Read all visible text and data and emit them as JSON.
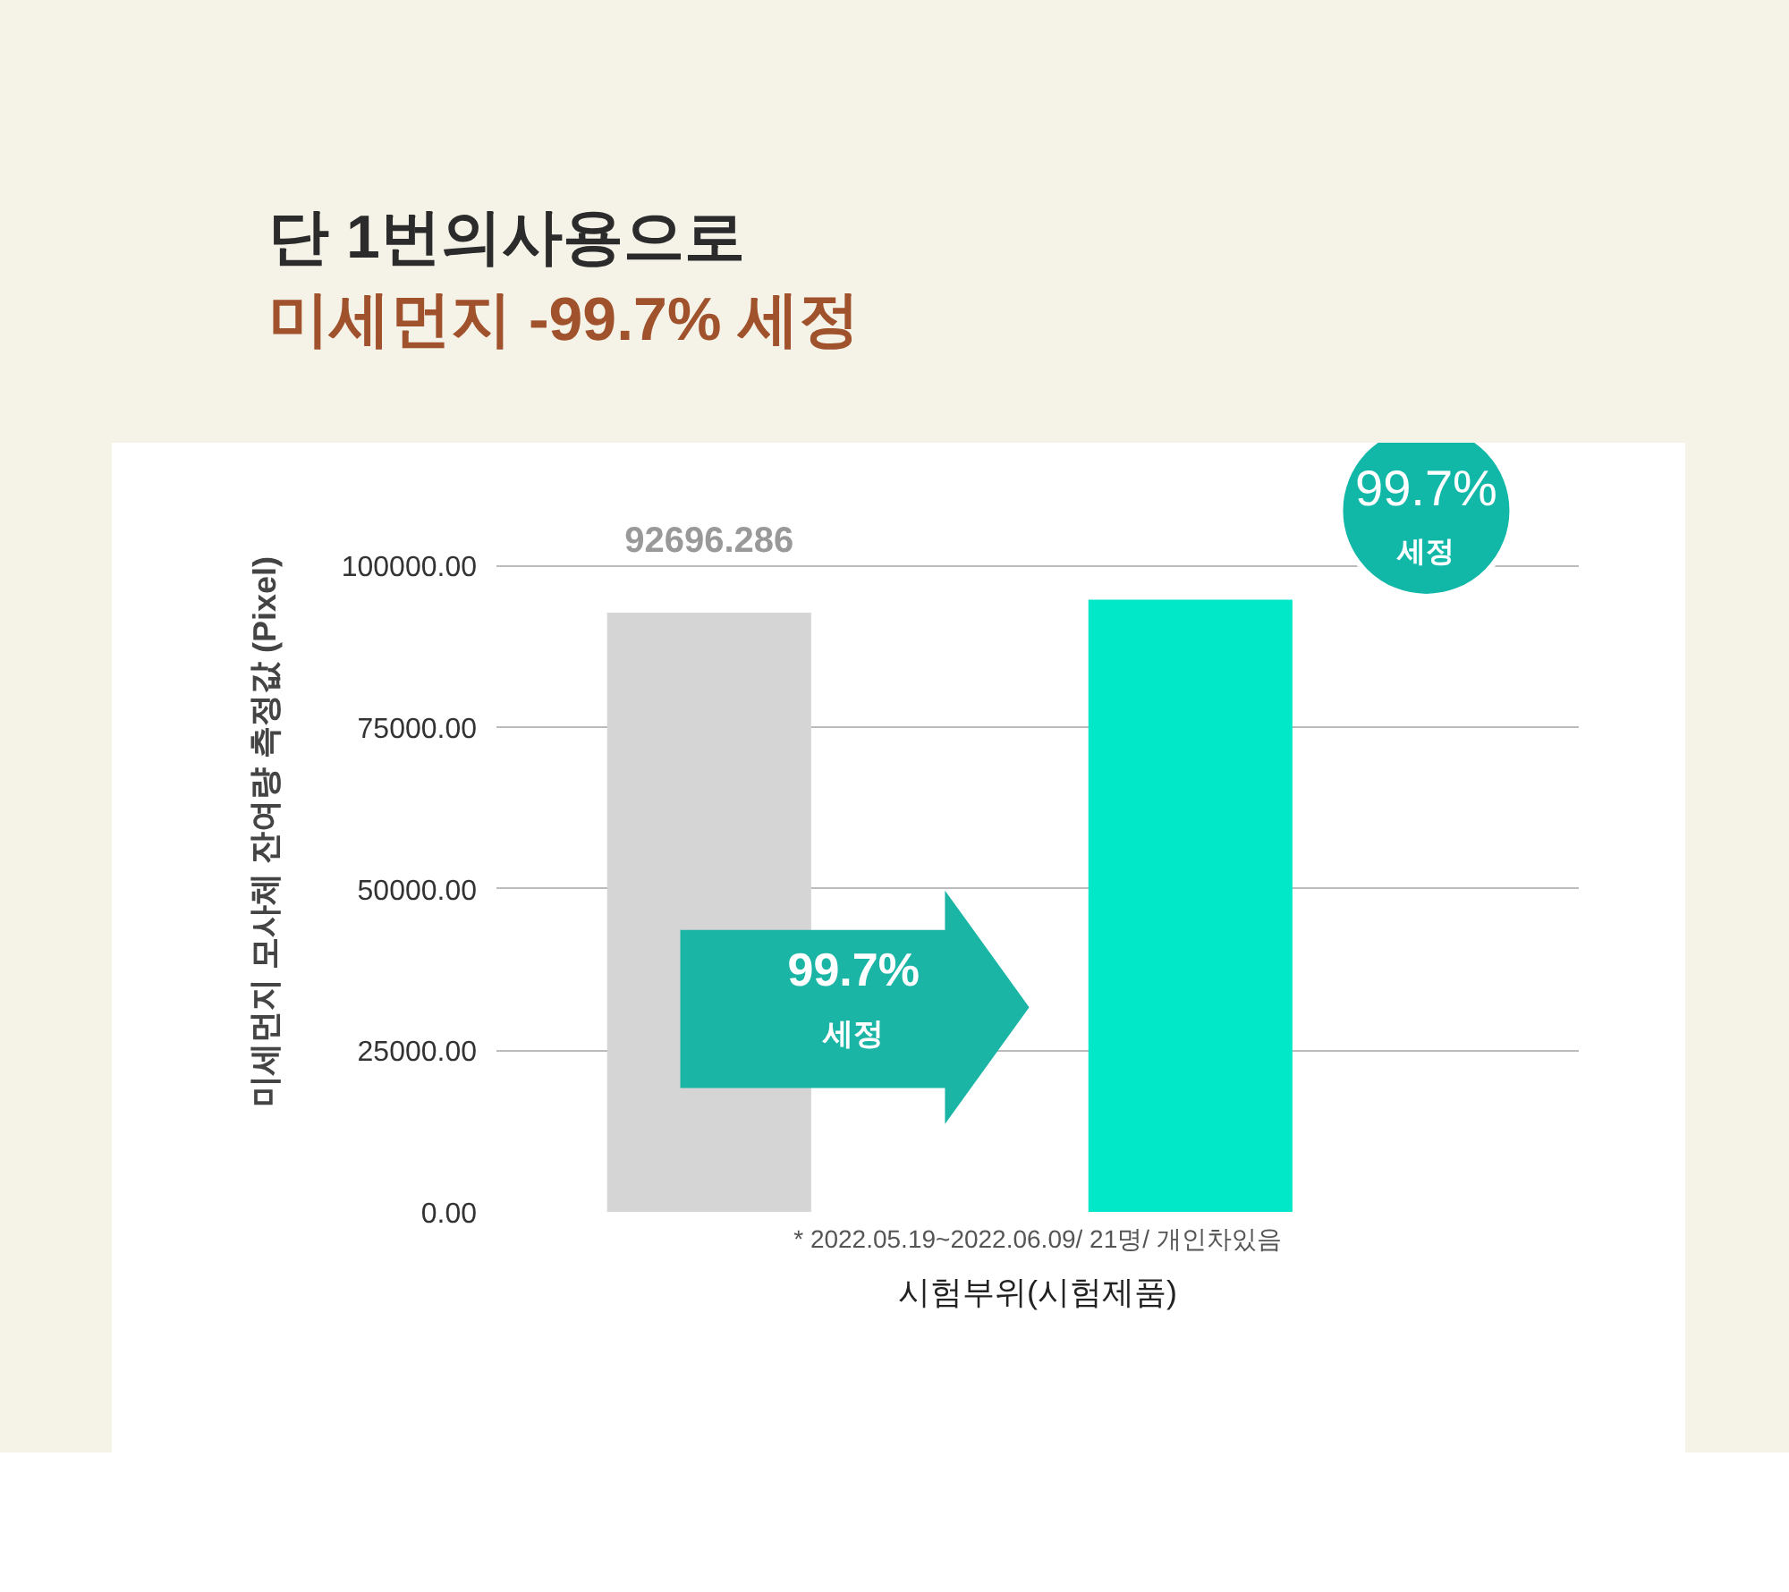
{
  "chart_data": {
    "type": "bar",
    "title": "단 1번의사용으로",
    "subtitle": "미세먼지 -99.7% 세정",
    "xlabel": "시험부위(시험제품)",
    "ylabel": "미세먼지 모사체 잔여량 측정값  (Pixel)",
    "categories": [
      null,
      null
    ],
    "values": [
      92696.286,
      94700
    ],
    "colors": [
      "#d5d5d5",
      "#00e8c8"
    ],
    "value_labels": [
      "92696.286",
      null
    ],
    "ylim": [
      0,
      119000
    ],
    "yticks": [
      {
        "value": 0,
        "label": "0.00"
      },
      {
        "value": 25000,
        "label": "25000.00"
      },
      {
        "value": 50000,
        "label": "50000.00"
      },
      {
        "value": 75000,
        "label": "75000.00"
      },
      {
        "value": 100000,
        "label": "100000.00"
      }
    ],
    "grid": "y",
    "annotations": [
      "99.7%\n세정",
      "99.7%\n세정",
      "* 2022.05.19~2022.06.09/ 21명/ 개인차있음"
    ]
  }
}
